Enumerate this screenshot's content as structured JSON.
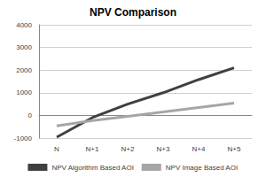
{
  "chart_data": {
    "type": "line",
    "title": "NPV Comparison",
    "categories": [
      "N",
      "N+1",
      "N+2",
      "N+3",
      "N+4",
      "N+5"
    ],
    "series": [
      {
        "name": "NPV Algorithm Based AOI",
        "color": "#404040",
        "values": [
          -960,
          -100,
          500,
          1000,
          1580,
          2100
        ]
      },
      {
        "name": "NPV Image Based AOI",
        "color": "#a6a6a6",
        "values": [
          -460,
          -230,
          -40,
          150,
          350,
          540
        ]
      }
    ],
    "ylim": [
      -1000,
      4000
    ],
    "yticks": [
      -1000,
      0,
      1000,
      2000,
      3000,
      4000
    ],
    "grid": true,
    "legend": "bottom",
    "marker": "none"
  }
}
